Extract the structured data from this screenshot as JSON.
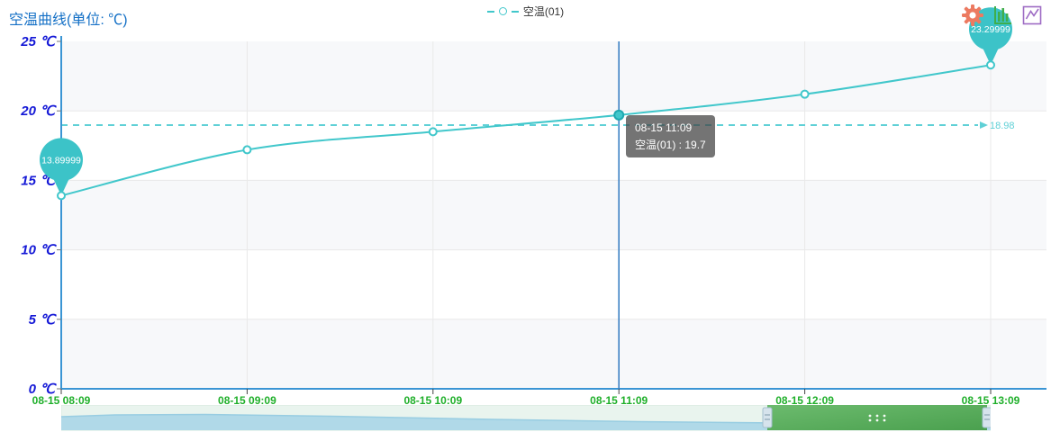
{
  "title": "空温曲线(单位: ℃)",
  "legend": {
    "label": "空温(01)"
  },
  "toolbar": {
    "icons": [
      "gear-icon",
      "bar-chart-icon",
      "line-chart-icon"
    ]
  },
  "tooltip": {
    "line1": "08-15 11:09",
    "line2": "空温(01) : 19.7"
  },
  "chart_data": {
    "type": "line",
    "title": "空温曲线(单位: ℃)",
    "x": [
      "08-15 08:09",
      "08-15 09:09",
      "08-15 10:09",
      "08-15 11:09",
      "08-15 12:09",
      "08-15 13:09"
    ],
    "series": [
      {
        "name": "空温(01)",
        "values": [
          13.9,
          17.2,
          18.5,
          19.7,
          21.2,
          23.3
        ],
        "color": "#41c7cb"
      }
    ],
    "ylim": [
      0,
      25
    ],
    "y_tick_labels": [
      "0 ℃",
      "5 ℃",
      "10 ℃",
      "15 ℃",
      "20 ℃",
      "25 ℃"
    ],
    "grid": true,
    "legend_position": "top-center",
    "mean_line": {
      "value": 18.98,
      "label": "18.98"
    },
    "pins": [
      {
        "point_index": 0,
        "label": "13.89999"
      },
      {
        "point_index": 5,
        "label": "23.29999"
      }
    ],
    "highlight": {
      "point_index": 3
    },
    "colors": {
      "series": "#41c7cb",
      "axis": "#3a95d4",
      "y_label": "#1418d6",
      "x_label": "#1faf2a",
      "pointer": "#3e82c4",
      "mean": "#5fd0d6",
      "band": "#f7f8fa",
      "gridline": "#e9e9e9",
      "pin_fill": "#3cc3c8"
    }
  },
  "datazoom": {
    "background": "#e9f4ee",
    "shadow_fill": "#b0d9e8",
    "shadow_line": "#98cde2",
    "selected_fill": "#55ab58",
    "handle_fill": "#d6e3ec",
    "drag_dots_icon": "grip-dots-icon"
  }
}
